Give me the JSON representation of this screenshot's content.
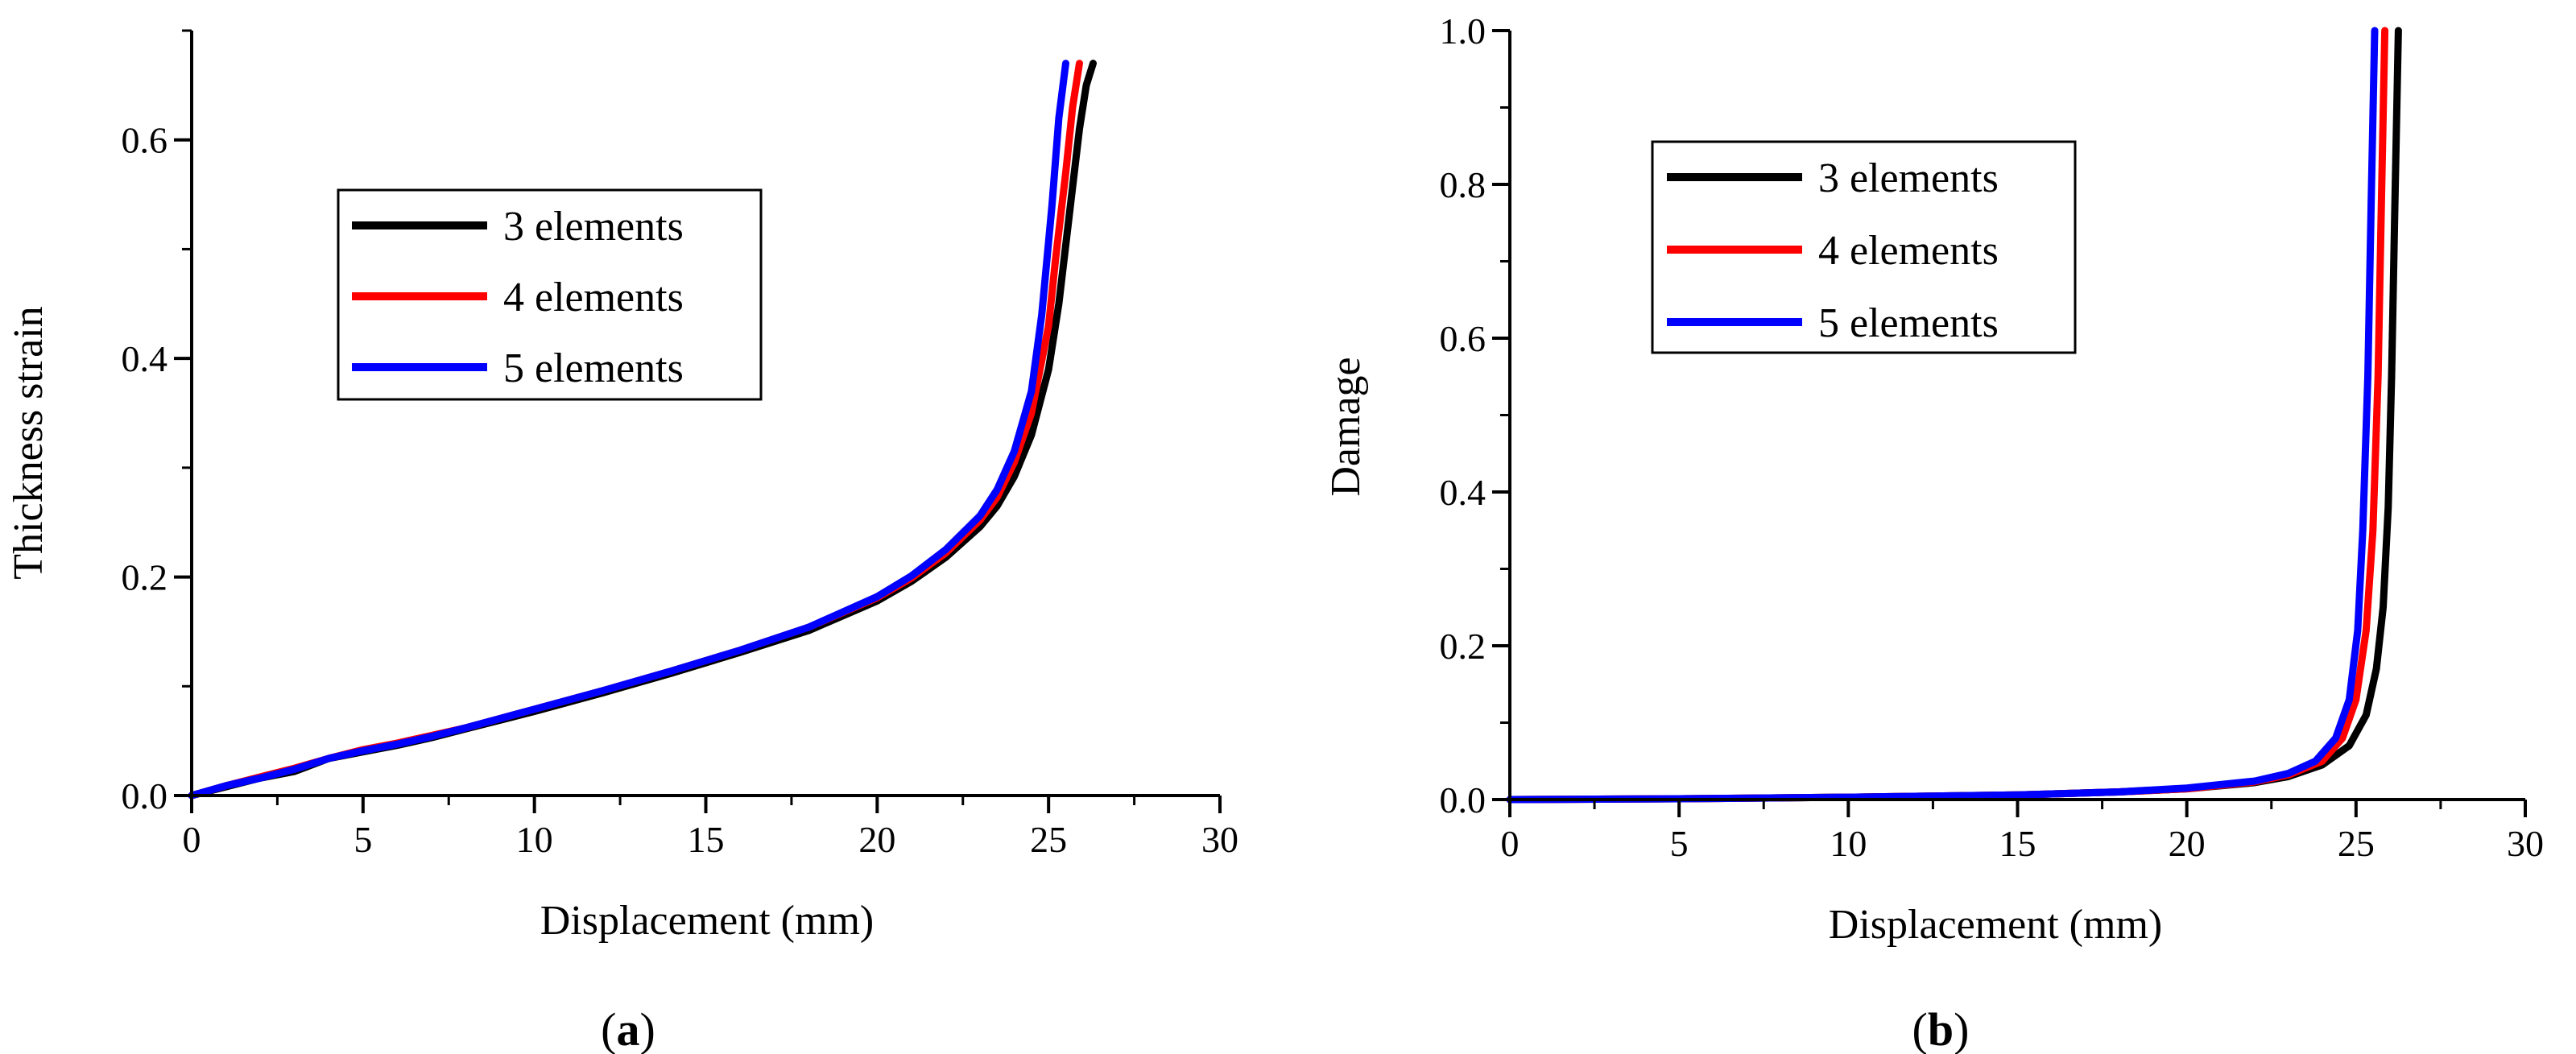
{
  "chart_data": [
    {
      "type": "line",
      "panel_label": "a",
      "title": "",
      "xlabel": "Displacement (mm)",
      "ylabel": "Thickness strain",
      "xlim": [
        0,
        30
      ],
      "ylim": [
        0,
        0.7
      ],
      "xticks": [
        0,
        5,
        10,
        15,
        20,
        25,
        30
      ],
      "yticks": [
        0.0,
        0.2,
        0.4,
        0.6
      ],
      "xtick_labels": [
        "0",
        "5",
        "10",
        "15",
        "20",
        "25",
        "30"
      ],
      "ytick_labels": [
        "0.0",
        "0.2",
        "0.4",
        "0.6"
      ],
      "legend_position": "upper-left-center",
      "grid": false,
      "series": [
        {
          "name": "3 elements",
          "color": "#000000",
          "x": [
            0,
            1,
            2,
            3,
            4,
            5,
            6,
            7,
            8,
            10,
            12,
            14,
            16,
            18,
            20,
            21,
            22,
            23,
            23.5,
            24,
            24.5,
            25,
            25.3,
            25.6,
            25.9,
            26.1,
            26.3
          ],
          "y": [
            0,
            0.008,
            0.016,
            0.022,
            0.034,
            0.04,
            0.046,
            0.053,
            0.061,
            0.077,
            0.094,
            0.112,
            0.131,
            0.151,
            0.178,
            0.196,
            0.218,
            0.246,
            0.265,
            0.292,
            0.33,
            0.39,
            0.45,
            0.53,
            0.61,
            0.65,
            0.67
          ]
        },
        {
          "name": "4 elements",
          "color": "#ff0000",
          "x": [
            0,
            1,
            2,
            3,
            4,
            5,
            6,
            7,
            8,
            10,
            12,
            14,
            16,
            18,
            20,
            21,
            22,
            23,
            23.5,
            24,
            24.5,
            25,
            25.2,
            25.5,
            25.7,
            25.9
          ],
          "y": [
            0,
            0.009,
            0.017,
            0.025,
            0.034,
            0.042,
            0.048,
            0.055,
            0.062,
            0.079,
            0.096,
            0.114,
            0.133,
            0.154,
            0.181,
            0.199,
            0.222,
            0.252,
            0.273,
            0.305,
            0.35,
            0.43,
            0.49,
            0.57,
            0.63,
            0.67
          ]
        },
        {
          "name": "5 elements",
          "color": "#0000ff",
          "x": [
            0,
            1,
            2,
            3,
            4,
            5,
            6,
            7,
            8,
            10,
            12,
            14,
            16,
            18,
            20,
            21,
            22,
            23,
            23.5,
            24,
            24.5,
            24.8,
            25.1,
            25.3,
            25.5
          ],
          "y": [
            0,
            0.009,
            0.016,
            0.024,
            0.034,
            0.041,
            0.047,
            0.054,
            0.062,
            0.079,
            0.096,
            0.114,
            0.133,
            0.154,
            0.182,
            0.201,
            0.225,
            0.256,
            0.28,
            0.315,
            0.37,
            0.44,
            0.54,
            0.62,
            0.67
          ]
        }
      ]
    },
    {
      "type": "line",
      "panel_label": "b",
      "title": "",
      "xlabel": "Displacement (mm)",
      "ylabel": "Damage",
      "xlim": [
        0,
        30
      ],
      "ylim": [
        0,
        1.0
      ],
      "xticks": [
        0,
        5,
        10,
        15,
        20,
        25,
        30
      ],
      "yticks": [
        0.0,
        0.2,
        0.4,
        0.6,
        0.8,
        1.0
      ],
      "xtick_labels": [
        "0",
        "5",
        "10",
        "15",
        "20",
        "25",
        "30"
      ],
      "ytick_labels": [
        "0.0",
        "0.2",
        "0.4",
        "0.6",
        "0.8",
        "1.0"
      ],
      "legend_position": "upper-left-center",
      "grid": false,
      "series": [
        {
          "name": "3 elements",
          "color": "#000000",
          "x": [
            0,
            5,
            10,
            15,
            18,
            20,
            22,
            23,
            24,
            24.8,
            25.3,
            25.6,
            25.8,
            25.95,
            26.05,
            26.15,
            26.25
          ],
          "y": [
            0,
            0.001,
            0.003,
            0.006,
            0.01,
            0.014,
            0.022,
            0.03,
            0.045,
            0.07,
            0.11,
            0.17,
            0.25,
            0.38,
            0.55,
            0.78,
            1.0
          ]
        },
        {
          "name": "4 elements",
          "color": "#ff0000",
          "x": [
            0,
            5,
            10,
            15,
            18,
            20,
            22,
            23,
            24,
            24.6,
            25.0,
            25.3,
            25.5,
            25.65,
            25.75,
            25.85
          ],
          "y": [
            0,
            0.001,
            0.003,
            0.006,
            0.01,
            0.014,
            0.023,
            0.032,
            0.05,
            0.08,
            0.13,
            0.22,
            0.35,
            0.55,
            0.78,
            1.0
          ]
        },
        {
          "name": "5 elements",
          "color": "#0000ff",
          "x": [
            0,
            5,
            10,
            15,
            18,
            20,
            22,
            23,
            23.8,
            24.4,
            24.8,
            25.05,
            25.2,
            25.35,
            25.45,
            25.55
          ],
          "y": [
            0,
            0.001,
            0.003,
            0.006,
            0.01,
            0.015,
            0.024,
            0.034,
            0.05,
            0.08,
            0.13,
            0.22,
            0.35,
            0.55,
            0.78,
            1.0
          ]
        }
      ]
    }
  ]
}
